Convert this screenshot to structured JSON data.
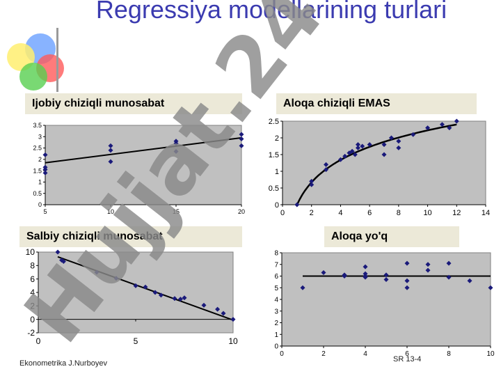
{
  "title": "Regressiya modellarining turlari",
  "footer": {
    "left": "Ekonometrika J.Nurboyev",
    "right": "SR 13-4"
  },
  "watermark": "Hujjat.24",
  "colors": {
    "title": "#3b3bb0",
    "plot_bg": "#c0c0c0",
    "marker": "#1a1a7a",
    "label_bg": "#ece9d8",
    "watermark": "#8a8a8a"
  },
  "icons": {
    "decoration": "overlapping-colored-circles-logo"
  },
  "chart_data": [
    {
      "type": "scatter",
      "title": "Ijobiy chiziqli munosabat",
      "xlim": [
        5,
        20
      ],
      "ylim": [
        0,
        3.5
      ],
      "xticks": [
        "5",
        "10",
        "15",
        "20"
      ],
      "yticks": [
        "0",
        "0.5",
        "1",
        "1.5",
        "2",
        "2.5",
        "3",
        "3.5"
      ],
      "points": [
        [
          5,
          1.4
        ],
        [
          5,
          1.55
        ],
        [
          5,
          1.65
        ],
        [
          5,
          2.2
        ],
        [
          10,
          1.9
        ],
        [
          10,
          2.4
        ],
        [
          10,
          2.6
        ],
        [
          15,
          2.35
        ],
        [
          15,
          2.7
        ],
        [
          15,
          2.8
        ],
        [
          20,
          2.6
        ],
        [
          20,
          2.9
        ],
        [
          20,
          3.1
        ]
      ],
      "fit": {
        "kind": "line",
        "from": [
          5,
          1.85
        ],
        "to": [
          20,
          2.95
        ]
      }
    },
    {
      "type": "scatter",
      "title": "Aloqa chiziqli EMAS",
      "xlim": [
        0,
        14
      ],
      "ylim": [
        0,
        2.5
      ],
      "xticks": [
        "0",
        "2",
        "4",
        "6",
        "8",
        "10",
        "12",
        "14"
      ],
      "yticks": [
        "0",
        "0.5",
        "1",
        "1.5",
        "2",
        "2.5"
      ],
      "points": [
        [
          1,
          0
        ],
        [
          2,
          0.6
        ],
        [
          2,
          0.7
        ],
        [
          3,
          1.05
        ],
        [
          3,
          1.2
        ],
        [
          4,
          1.35
        ],
        [
          4.3,
          1.45
        ],
        [
          4.6,
          1.55
        ],
        [
          4.8,
          1.6
        ],
        [
          5,
          1.5
        ],
        [
          5.2,
          1.7
        ],
        [
          5.2,
          1.8
        ],
        [
          5.5,
          1.75
        ],
        [
          6,
          1.8
        ],
        [
          7,
          1.5
        ],
        [
          7,
          1.8
        ],
        [
          7.5,
          2.0
        ],
        [
          8,
          1.7
        ],
        [
          8,
          1.9
        ],
        [
          9,
          2.1
        ],
        [
          10,
          2.3
        ],
        [
          11,
          2.4
        ],
        [
          11.5,
          2.3
        ],
        [
          12,
          2.5
        ]
      ],
      "fit": {
        "kind": "log",
        "a": 0.9662,
        "x0": 1,
        "x1": 12
      }
    },
    {
      "type": "scatter",
      "title": "Salbiy chiziqli munosabat",
      "xlim": [
        0,
        10
      ],
      "ylim": [
        -2,
        10
      ],
      "xticks": [
        "0",
        "5",
        "10"
      ],
      "yticks": [
        "-2",
        "0",
        "2",
        "4",
        "6",
        "8",
        "10"
      ],
      "points": [
        [
          1,
          10
        ],
        [
          1.2,
          8.8
        ],
        [
          1.3,
          8.6
        ],
        [
          3,
          7.0
        ],
        [
          4,
          6.1
        ],
        [
          5,
          5.0
        ],
        [
          5.5,
          4.8
        ],
        [
          6,
          4.0
        ],
        [
          6.3,
          3.6
        ],
        [
          7,
          3.1
        ],
        [
          7.3,
          3.0
        ],
        [
          7.5,
          3.2
        ],
        [
          8.5,
          2.1
        ],
        [
          9.2,
          1.5
        ],
        [
          9.5,
          0.9
        ],
        [
          10,
          0.0
        ]
      ],
      "fit": {
        "kind": "line",
        "from": [
          1,
          9.3
        ],
        "to": [
          10,
          -0.1
        ]
      }
    },
    {
      "type": "scatter",
      "title": "Aloqa yo'q",
      "xlim": [
        0,
        10
      ],
      "ylim": [
        0,
        8
      ],
      "xticks": [
        "0",
        "2",
        "4",
        "6",
        "8",
        "10"
      ],
      "yticks": [
        "0",
        "1",
        "2",
        "3",
        "4",
        "5",
        "6",
        "7",
        "8"
      ],
      "points": [
        [
          1,
          5
        ],
        [
          2,
          6.3
        ],
        [
          3,
          6
        ],
        [
          3,
          6.1
        ],
        [
          4,
          5.9
        ],
        [
          4,
          6
        ],
        [
          4,
          6.2
        ],
        [
          4,
          6.8
        ],
        [
          5,
          5.7
        ],
        [
          5,
          6.1
        ],
        [
          6,
          5
        ],
        [
          6,
          5.6
        ],
        [
          6,
          7.1
        ],
        [
          7,
          6.5
        ],
        [
          7,
          7
        ],
        [
          8,
          5.9
        ],
        [
          8,
          7.1
        ],
        [
          9,
          5.6
        ],
        [
          10,
          5
        ]
      ],
      "fit": {
        "kind": "line",
        "from": [
          1,
          6.0
        ],
        "to": [
          10,
          6.0
        ]
      }
    }
  ]
}
